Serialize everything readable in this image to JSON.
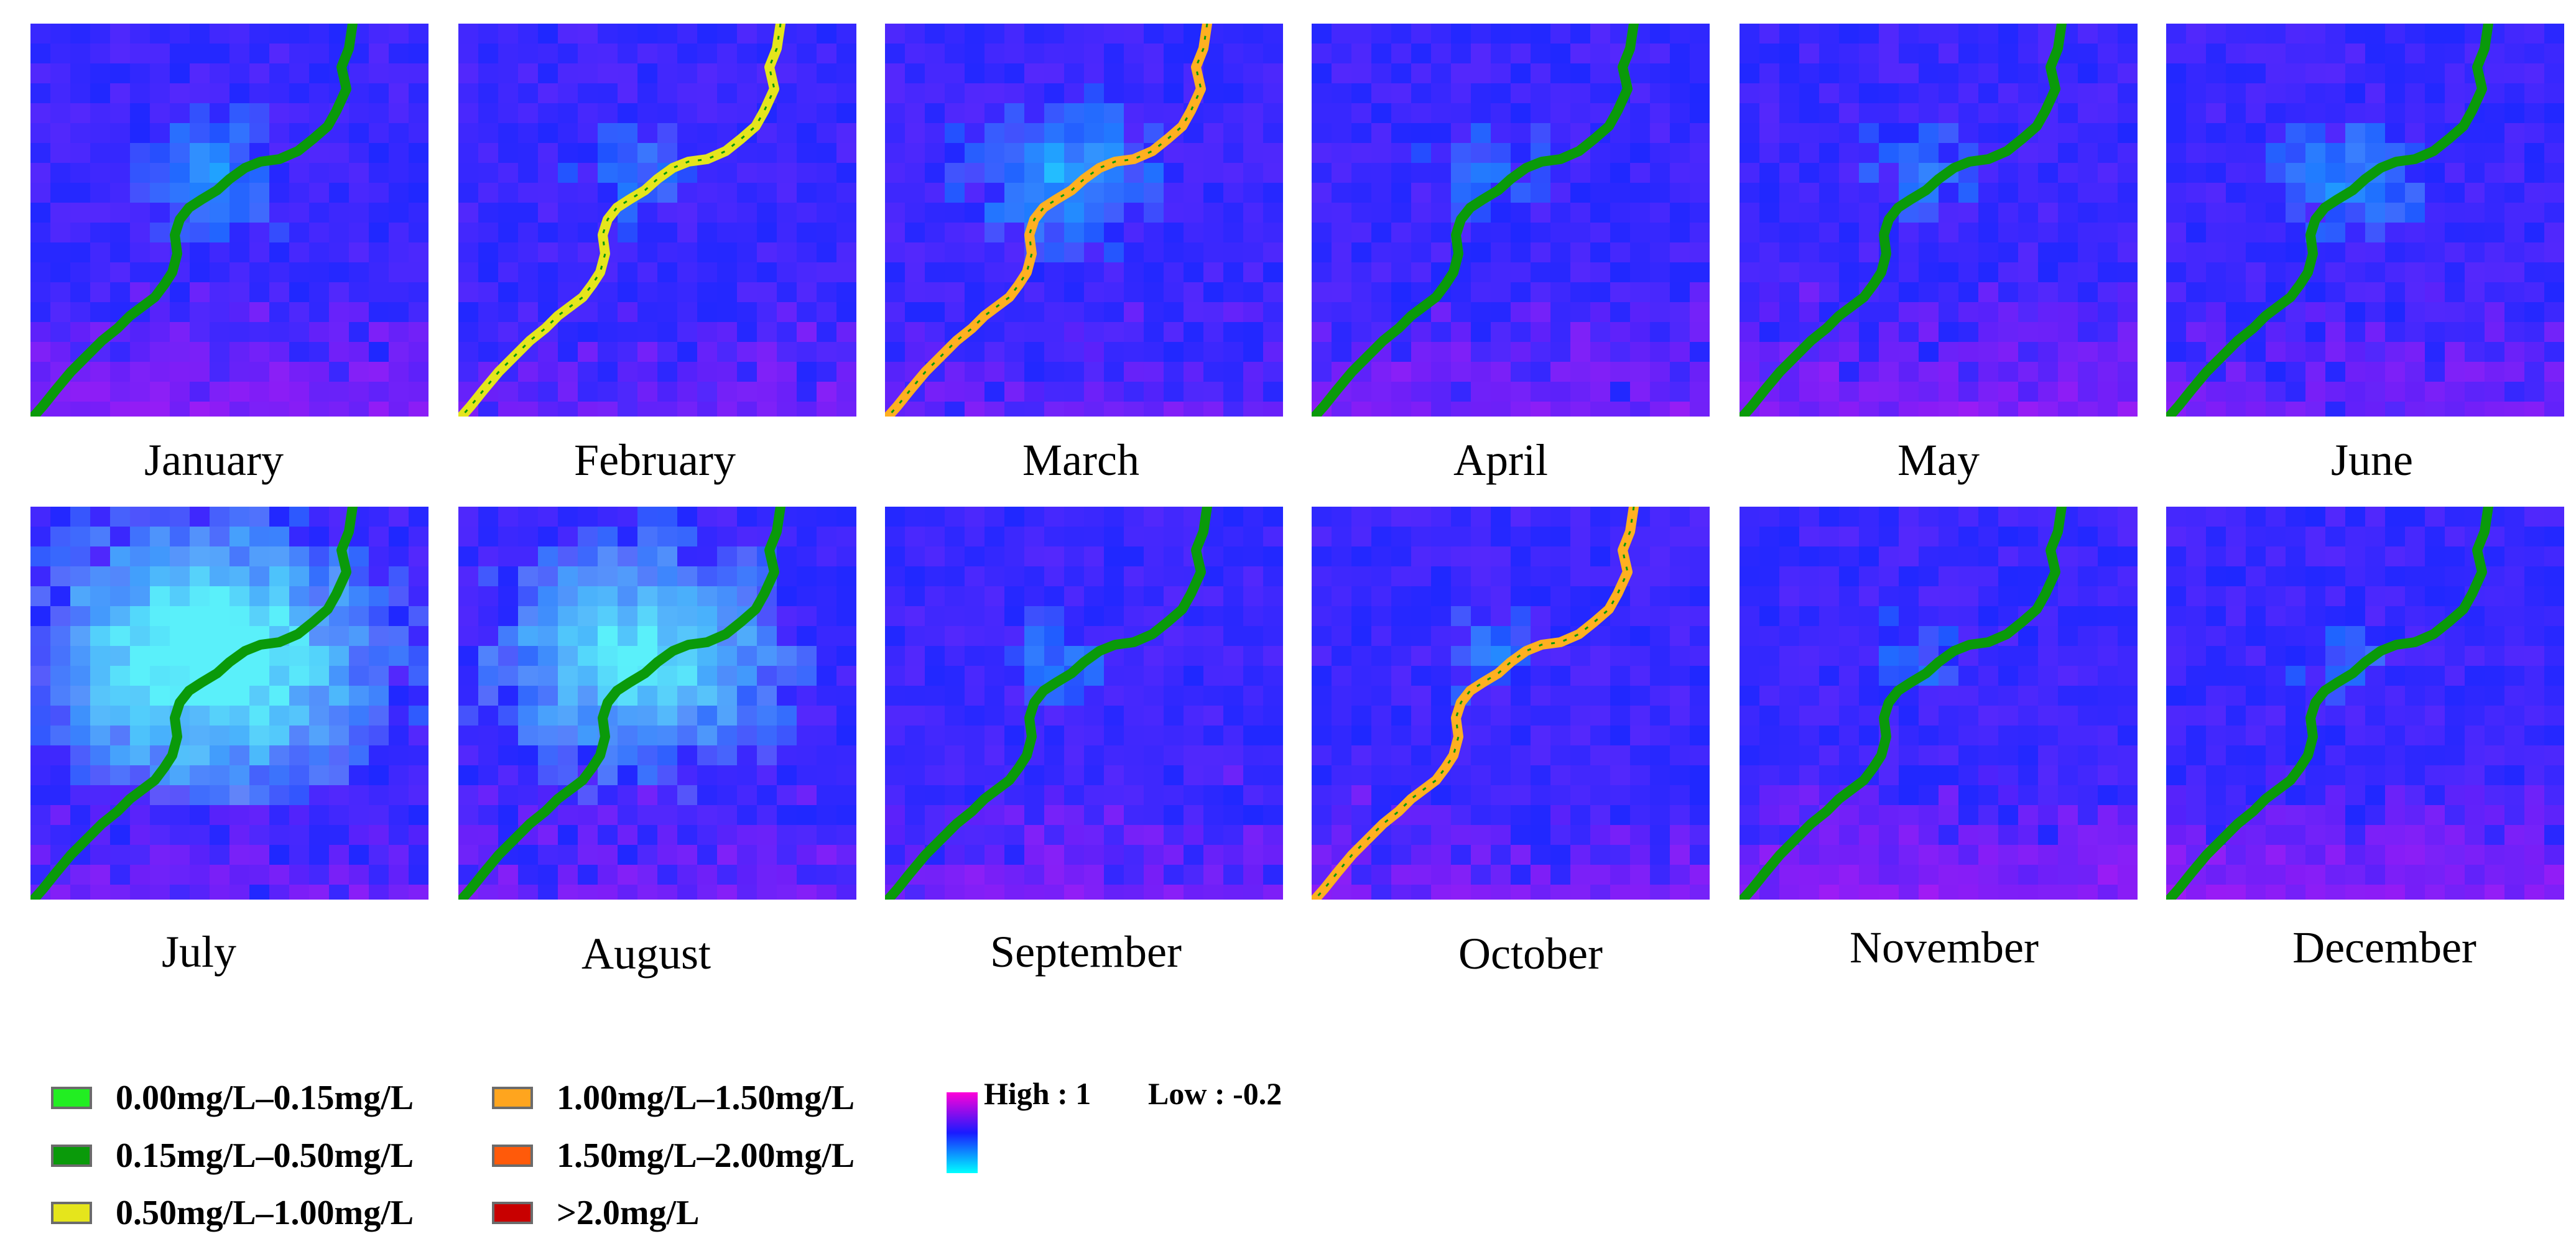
{
  "figure": {
    "panels": [
      {
        "month": "January",
        "river_class": "green",
        "cyan_level": 0.45,
        "magenta_level": 0.55
      },
      {
        "month": "February",
        "river_class": "yellow",
        "cyan_level": 0.35,
        "magenta_level": 0.4
      },
      {
        "month": "March",
        "river_class": "orange",
        "cyan_level": 0.55,
        "magenta_level": 0.35
      },
      {
        "month": "April",
        "river_class": "green",
        "cyan_level": 0.35,
        "magenta_level": 0.5
      },
      {
        "month": "May",
        "river_class": "green",
        "cyan_level": 0.35,
        "magenta_level": 0.55
      },
      {
        "month": "June",
        "river_class": "green",
        "cyan_level": 0.45,
        "magenta_level": 0.45
      },
      {
        "month": "July",
        "river_class": "green",
        "cyan_level": 0.95,
        "magenta_level": 0.4
      },
      {
        "month": "August",
        "river_class": "green",
        "cyan_level": 0.8,
        "magenta_level": 0.4
      },
      {
        "month": "September",
        "river_class": "green",
        "cyan_level": 0.35,
        "magenta_level": 0.45
      },
      {
        "month": "October",
        "river_class": "orange",
        "cyan_level": 0.35,
        "magenta_level": 0.45
      },
      {
        "month": "November",
        "river_class": "green",
        "cyan_level": 0.3,
        "magenta_level": 0.6
      },
      {
        "month": "December",
        "river_class": "green",
        "cyan_level": 0.3,
        "magenta_level": 0.6
      }
    ]
  },
  "legend": {
    "classes": [
      {
        "label": "0.00mg/L–0.15mg/L",
        "color": "#22ee22"
      },
      {
        "label": "0.15mg/L–0.50mg/L",
        "color": "#0a9a0a"
      },
      {
        "label": "0.50mg/L–1.00mg/L",
        "color": "#e5e51c"
      },
      {
        "label": "1.00mg/L–1.50mg/L",
        "color": "#ffa51e"
      },
      {
        "label": "1.50mg/L–2.00mg/L",
        "color": "#ff5a0a"
      },
      {
        "label": ">2.0mg/L",
        "color": "#c80000"
      }
    ],
    "ramp": {
      "high_label": "High : 1",
      "low_label": "Low : -0.2",
      "colors": [
        "#ff00d8",
        "#1a1aff",
        "#00ffff"
      ]
    }
  },
  "colors": {
    "river_green": "#0a9a0a",
    "river_yellow": "#e5e51c",
    "river_orange": "#ffb020",
    "water_blue": "#1f2bff"
  }
}
